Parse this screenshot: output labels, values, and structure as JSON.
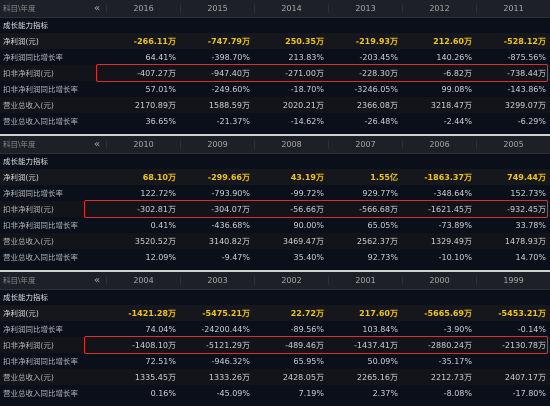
{
  "header_label": "科目\\年度",
  "nav_icon": "«",
  "tables": [
    {
      "years": [
        "2016",
        "2015",
        "2014",
        "2013",
        "2012",
        "2011"
      ],
      "section": "成长能力指标",
      "rows": [
        {
          "label": "净利润(元)",
          "values": [
            "-266.11万",
            "-747.79万",
            "250.35万",
            "-219.93万",
            "212.60万",
            "-528.12万"
          ]
        },
        {
          "label": "净利润同比增长率",
          "values": [
            "64.41%",
            "-398.70%",
            "213.83%",
            "-203.45%",
            "140.26%",
            "-875.56%"
          ]
        },
        {
          "label": "扣非净利润(元)",
          "values": [
            "-407.27万",
            "-947.40万",
            "-271.00万",
            "-228.30万",
            "-6.82万",
            "-738.44万"
          ]
        },
        {
          "label": "扣非净利润同比增长率",
          "values": [
            "57.01%",
            "-249.60%",
            "-18.70%",
            "-3246.05%",
            "99.08%",
            "-143.86%"
          ]
        },
        {
          "label": "营业总收入(元)",
          "values": [
            "2170.89万",
            "1588.59万",
            "2020.21万",
            "2366.08万",
            "3218.47万",
            "3299.07万"
          ]
        },
        {
          "label": "营业总收入同比增长率",
          "values": [
            "36.65%",
            "-21.37%",
            "-14.62%",
            "-26.48%",
            "-2.44%",
            "-6.29%"
          ]
        }
      ]
    },
    {
      "years": [
        "2010",
        "2009",
        "2008",
        "2007",
        "2006",
        "2005"
      ],
      "section": "成长能力指标",
      "rows": [
        {
          "label": "净利润(元)",
          "values": [
            "68.10万",
            "-299.66万",
            "43.19万",
            "1.55亿",
            "-1863.37万",
            "749.44万"
          ]
        },
        {
          "label": "净利润同比增长率",
          "values": [
            "122.72%",
            "-793.90%",
            "-99.72%",
            "929.77%",
            "-348.64%",
            "152.73%"
          ]
        },
        {
          "label": "扣非净利润(元)",
          "values": [
            "-302.81万",
            "-304.07万",
            "-56.66万",
            "-566.68万",
            "-1621.45万",
            "-932.45万"
          ]
        },
        {
          "label": "扣非净利润同比增长率",
          "values": [
            "0.41%",
            "-436.68%",
            "90.00%",
            "65.05%",
            "-73.89%",
            "33.78%"
          ]
        },
        {
          "label": "营业总收入(元)",
          "values": [
            "3520.52万",
            "3140.82万",
            "3469.47万",
            "2562.37万",
            "1329.49万",
            "1478.93万"
          ]
        },
        {
          "label": "营业总收入同比增长率",
          "values": [
            "12.09%",
            "-9.47%",
            "35.40%",
            "92.73%",
            "-10.10%",
            "14.70%"
          ]
        }
      ]
    },
    {
      "years": [
        "2004",
        "2003",
        "2002",
        "2001",
        "2000",
        "1999"
      ],
      "section": "成长能力指标",
      "rows": [
        {
          "label": "净利润(元)",
          "values": [
            "-1421.28万",
            "-5475.21万",
            "22.72万",
            "217.60万",
            "-5665.69万",
            "-5453.21万"
          ]
        },
        {
          "label": "净利润同比增长率",
          "values": [
            "74.04%",
            "-24200.44%",
            "-89.56%",
            "103.84%",
            "-3.90%",
            "-0.14%"
          ]
        },
        {
          "label": "扣非净利润(元)",
          "values": [
            "-1408.10万",
            "-5121.29万",
            "-489.46万",
            "-1437.41万",
            "-2880.24万",
            "-2130.78万"
          ]
        },
        {
          "label": "扣非净利润同比增长率",
          "values": [
            "72.51%",
            "-946.32%",
            "65.95%",
            "50.09%",
            "-35.17%",
            ""
          ]
        },
        {
          "label": "营业总收入(元)",
          "values": [
            "1335.45万",
            "1333.26万",
            "2428.05万",
            "2265.16万",
            "2212.73万",
            "2407.17万"
          ]
        },
        {
          "label": "营业总收入同比增长率",
          "values": [
            "0.16%",
            "-45.09%",
            "7.19%",
            "2.37%",
            "-8.08%",
            "-17.80%"
          ]
        }
      ]
    }
  ]
}
